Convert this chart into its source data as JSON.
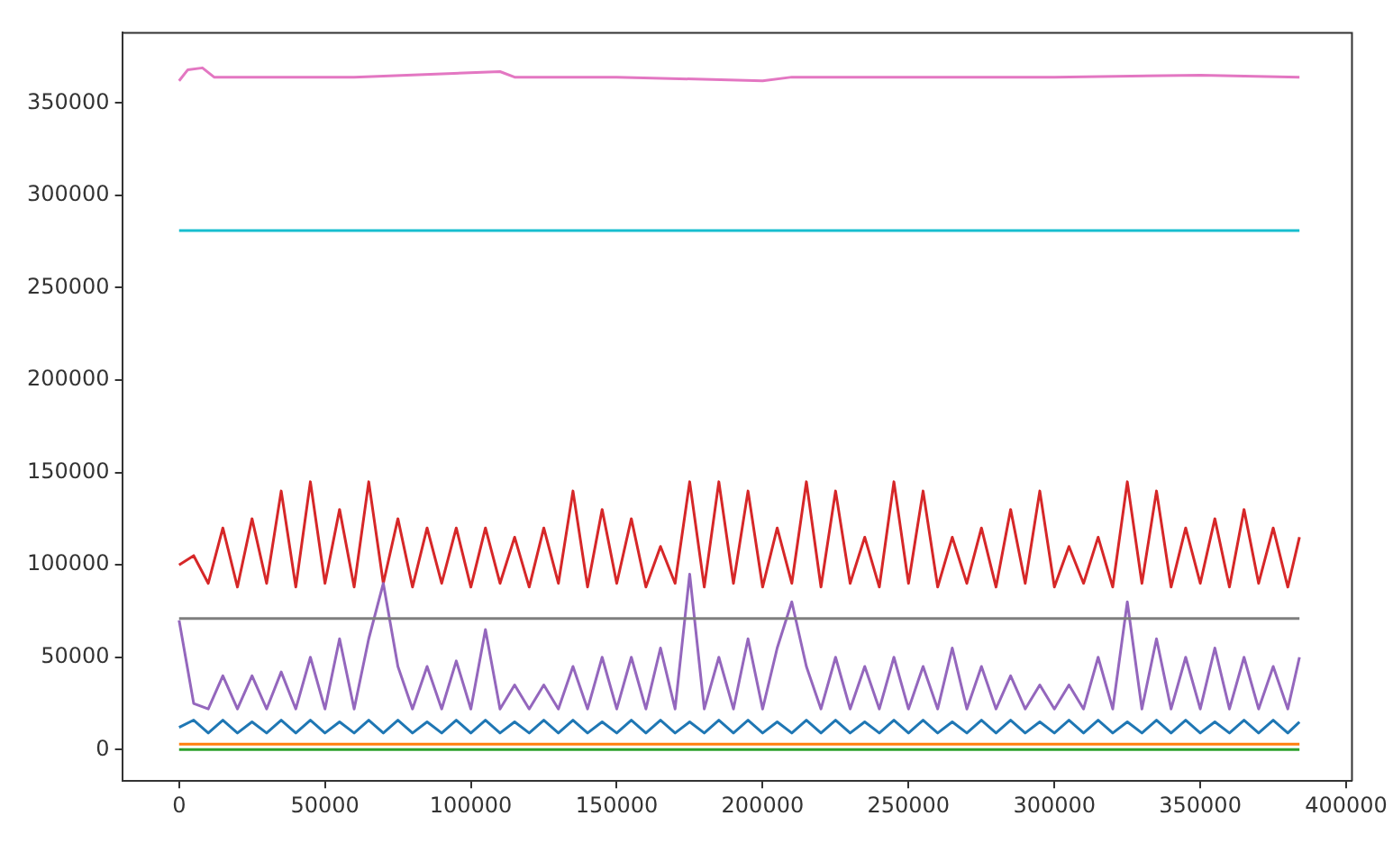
{
  "chart_data": {
    "type": "line",
    "x": [
      0,
      5000,
      10000,
      15000,
      20000,
      25000,
      30000,
      35000,
      40000,
      45000,
      50000,
      55000,
      60000,
      65000,
      70000,
      75000,
      80000,
      85000,
      90000,
      95000,
      100000,
      105000,
      110000,
      115000,
      120000,
      125000,
      130000,
      135000,
      140000,
      145000,
      150000,
      155000,
      160000,
      165000,
      170000,
      175000,
      180000,
      185000,
      190000,
      195000,
      200000,
      205000,
      210000,
      215000,
      220000,
      225000,
      230000,
      235000,
      240000,
      245000,
      250000,
      255000,
      260000,
      265000,
      270000,
      275000,
      280000,
      285000,
      290000,
      295000,
      300000,
      305000,
      310000,
      315000,
      320000,
      325000,
      330000,
      335000,
      340000,
      345000,
      350000,
      355000,
      360000,
      365000,
      370000,
      375000,
      380000,
      384000
    ],
    "xlim": [
      -19500,
      402000
    ],
    "xticks": [
      0,
      50000,
      100000,
      150000,
      200000,
      250000,
      300000,
      350000,
      400000
    ],
    "ylim": [
      -17000,
      388000
    ],
    "yticks": [
      0,
      50000,
      100000,
      150000,
      200000,
      250000,
      300000,
      350000
    ],
    "grid": false,
    "legend": false,
    "marker": "none",
    "line_style": "solid",
    "series": [
      {
        "color": "#1f77b4",
        "values": [
          12000,
          16000,
          9000,
          16000,
          9000,
          15000,
          9000,
          16000,
          9000,
          16000,
          9000,
          15000,
          9000,
          16000,
          9000,
          16000,
          9000,
          15000,
          9000,
          16000,
          9000,
          16000,
          9000,
          15000,
          9000,
          16000,
          9000,
          16000,
          9000,
          15000,
          9000,
          16000,
          9000,
          16000,
          9000,
          15000,
          9000,
          16000,
          9000,
          16000,
          9000,
          15000,
          9000,
          16000,
          9000,
          16000,
          9000,
          15000,
          9000,
          16000,
          9000,
          16000,
          9000,
          15000,
          9000,
          16000,
          9000,
          16000,
          9000,
          15000,
          9000,
          16000,
          9000,
          16000,
          9000,
          15000,
          9000,
          16000,
          9000,
          16000,
          9000,
          15000,
          9000,
          16000,
          9000,
          16000,
          9000,
          15000
        ]
      },
      {
        "color": "#ff7f0e",
        "x": [
          0,
          384000
        ],
        "values": [
          3000,
          3000
        ]
      },
      {
        "color": "#2ca02c",
        "x": [
          0,
          384000
        ],
        "values": [
          0,
          0
        ]
      },
      {
        "color": "#d62728",
        "values": [
          100000,
          105000,
          90000,
          120000,
          88000,
          125000,
          90000,
          140000,
          88000,
          145000,
          90000,
          130000,
          88000,
          145000,
          90000,
          125000,
          88000,
          120000,
          90000,
          120000,
          88000,
          120000,
          90000,
          115000,
          88000,
          120000,
          90000,
          140000,
          88000,
          130000,
          90000,
          125000,
          88000,
          110000,
          90000,
          145000,
          88000,
          145000,
          90000,
          140000,
          88000,
          120000,
          90000,
          145000,
          88000,
          140000,
          90000,
          115000,
          88000,
          145000,
          90000,
          140000,
          88000,
          115000,
          90000,
          120000,
          88000,
          130000,
          90000,
          140000,
          88000,
          110000,
          90000,
          115000,
          88000,
          145000,
          90000,
          140000,
          88000,
          120000,
          90000,
          125000,
          88000,
          130000,
          90000,
          120000,
          88000,
          115000
        ]
      },
      {
        "color": "#9467bd",
        "values": [
          70000,
          25000,
          22000,
          40000,
          22000,
          40000,
          22000,
          42000,
          22000,
          50000,
          22000,
          60000,
          22000,
          60000,
          90000,
          45000,
          22000,
          45000,
          22000,
          48000,
          22000,
          65000,
          22000,
          35000,
          22000,
          35000,
          22000,
          45000,
          22000,
          50000,
          22000,
          50000,
          22000,
          55000,
          22000,
          95000,
          22000,
          50000,
          22000,
          60000,
          22000,
          55000,
          80000,
          45000,
          22000,
          50000,
          22000,
          45000,
          22000,
          50000,
          22000,
          45000,
          22000,
          55000,
          22000,
          45000,
          22000,
          40000,
          22000,
          35000,
          22000,
          35000,
          22000,
          50000,
          22000,
          80000,
          22000,
          60000,
          22000,
          50000,
          22000,
          55000,
          22000,
          50000,
          22000,
          45000,
          22000,
          50000
        ]
      },
      {
        "color": "#7f7f7f",
        "x": [
          0,
          384000
        ],
        "values": [
          71000,
          71000
        ]
      },
      {
        "color": "#17becf",
        "x": [
          0,
          384000
        ],
        "values": [
          281000,
          281000
        ]
      },
      {
        "color": "#e377c2",
        "x": [
          0,
          3000,
          8000,
          12000,
          60000,
          110000,
          115000,
          150000,
          200000,
          210000,
          300000,
          350000,
          384000
        ],
        "values": [
          362000,
          368000,
          369000,
          364000,
          364000,
          367000,
          364000,
          364000,
          362000,
          364000,
          364000,
          365000,
          364000
        ]
      }
    ]
  }
}
